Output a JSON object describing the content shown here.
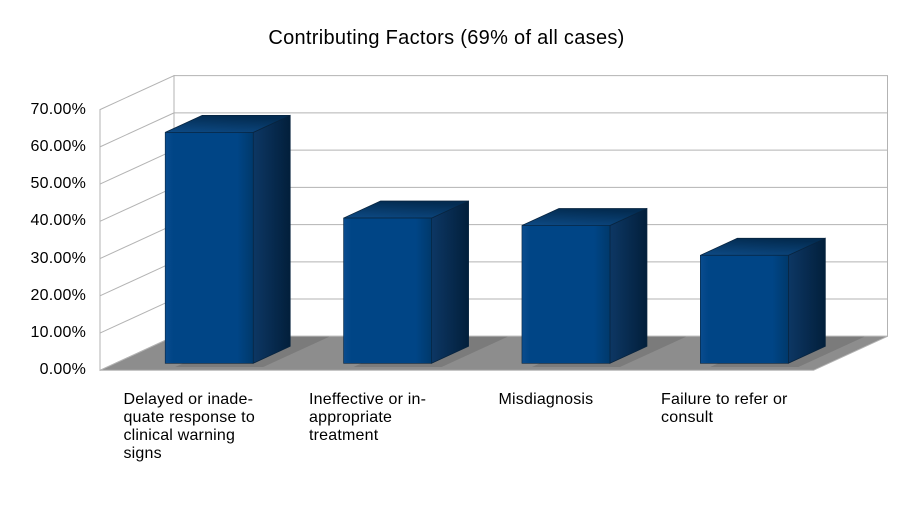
{
  "chart_data": {
    "type": "bar",
    "projection": "3d",
    "title": "Contributing Factors (69% of all cases)",
    "categories": [
      "Delayed or inadequate response to clinical warning signs",
      "Ineffective or inappropriate treatment",
      "Misdiagnosis",
      "Failure to refer or consult"
    ],
    "categories_display": [
      [
        "Delayed or inade-",
        "quate response to",
        "clinical warning",
        "signs"
      ],
      [
        "Ineffective or in-",
        "appropriate",
        "treatment"
      ],
      [
        "Misdiagnosis"
      ],
      [
        "Failure to refer or",
        "consult"
      ]
    ],
    "values": [
      62,
      39,
      37,
      29
    ],
    "unit": "%",
    "xlabel": "",
    "ylabel": "",
    "ylim": [
      0,
      70
    ],
    "y_tick_step": 10,
    "y_ticks": [
      "0.00%",
      "10.00%",
      "20.00%",
      "30.00%",
      "40.00%",
      "50.00%",
      "60.00%",
      "70.00%"
    ],
    "grid": true,
    "legend": "none",
    "colors": {
      "bar_front": "#004586",
      "bar_front_edge": "#0a4c8e",
      "bar_front_dark": "#00396b",
      "bar_top_light": "#0d4a85",
      "bar_top_dark": "#032c52",
      "bar_side_light": "#0d3764",
      "bar_side_dark": "#021f3b",
      "bar_outline": "#08243f",
      "floor": "#8d8d8d",
      "floor_shadow": "#7b7b7b",
      "wall_fill": "#ffffff",
      "wall_stroke": "#b3b3b3",
      "text": "#000000",
      "background": "#ffffff"
    }
  }
}
